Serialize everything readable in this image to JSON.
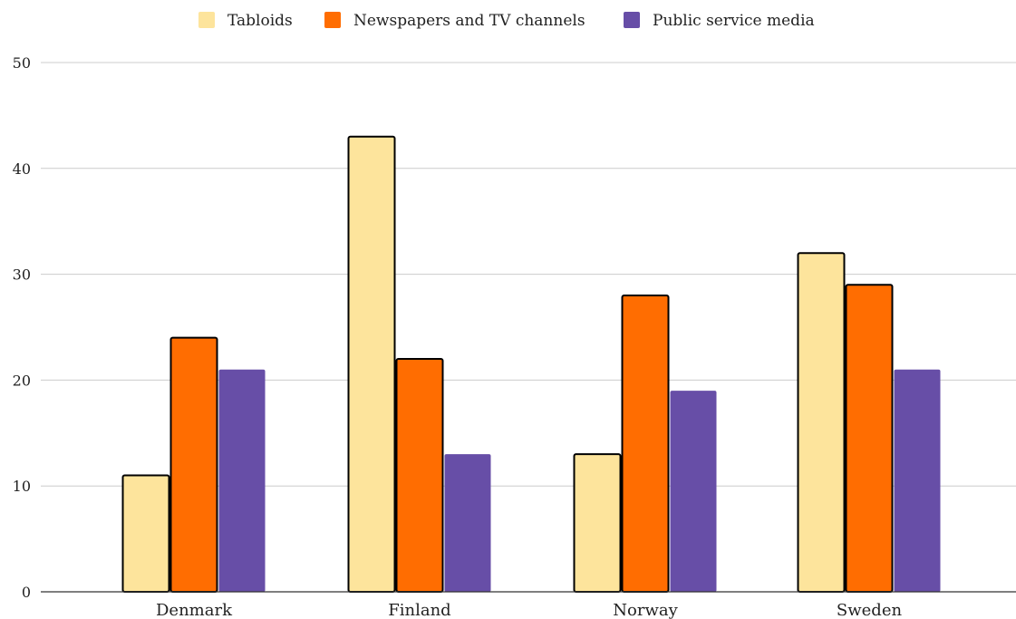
{
  "chart_data": {
    "type": "bar",
    "categories": [
      "Denmark",
      "Finland",
      "Norway",
      "Sweden"
    ],
    "series": [
      {
        "name": "Tabloids",
        "color": "#FDE49C",
        "values": [
          11,
          43,
          13,
          32
        ]
      },
      {
        "name": "Newspapers and TV channels",
        "color": "#FF6D01",
        "values": [
          24,
          22,
          28,
          29
        ]
      },
      {
        "name": "Public service media",
        "color": "#674EA7",
        "values": [
          21,
          13,
          19,
          21
        ]
      }
    ],
    "ylim": [
      0,
      50
    ],
    "yticks": [
      "0",
      "10",
      "20",
      "30",
      "40",
      "50"
    ],
    "grid": true,
    "legend_position": "top-center",
    "title": "",
    "xlabel": "",
    "ylabel": ""
  }
}
